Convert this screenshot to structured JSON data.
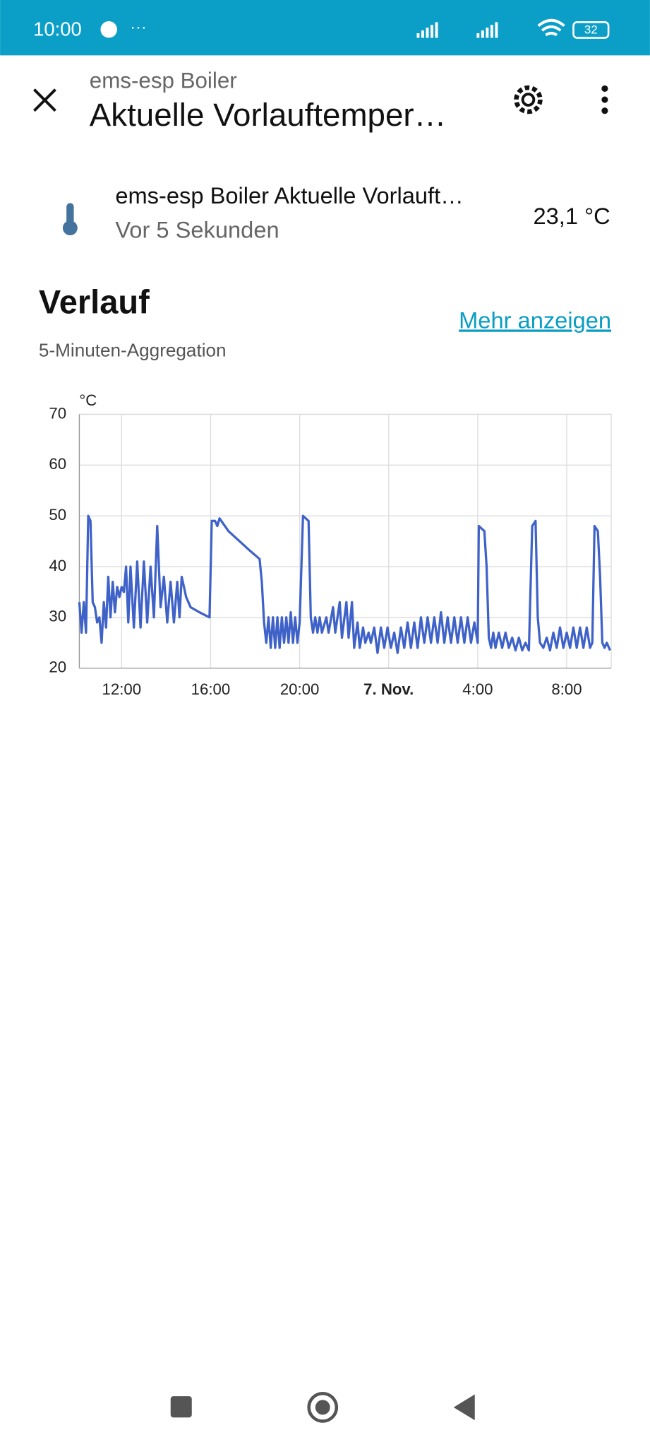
{
  "status_bar": {
    "time": "10:00",
    "battery": "32"
  },
  "header": {
    "subtitle": "ems-esp Boiler",
    "title": "Aktuelle Vorlauftemper…"
  },
  "entity": {
    "name": "ems-esp Boiler Aktuelle Vorlauft…",
    "last_changed": "Vor 5 Sekunden",
    "state": "23,1 °C"
  },
  "history": {
    "title": "Verlauf",
    "link": "Mehr anzeigen",
    "subtitle": "5-Minuten-Aggregation"
  },
  "chart_data": {
    "type": "line",
    "y_label": "°C",
    "color": "#3f62c8",
    "grid": true,
    "xlim": [
      10.1,
      34.0
    ],
    "ylim": [
      20,
      70
    ],
    "yticks": [
      20,
      30,
      40,
      50,
      60,
      70
    ],
    "xticks": [
      {
        "value": 12,
        "label": "12:00"
      },
      {
        "value": 16,
        "label": "16:00"
      },
      {
        "value": 20,
        "label": "20:00"
      },
      {
        "value": 24,
        "label": "7. Nov."
      },
      {
        "value": 28,
        "label": "4:00"
      },
      {
        "value": 32,
        "label": "8:00"
      }
    ],
    "x": [
      10.1,
      10.2,
      10.3,
      10.4,
      10.5,
      10.6,
      10.7,
      10.8,
      10.9,
      11.0,
      11.1,
      11.2,
      11.3,
      11.4,
      11.5,
      11.6,
      11.7,
      11.8,
      11.9,
      12.0,
      12.1,
      12.2,
      12.3,
      12.4,
      12.55,
      12.7,
      12.85,
      13.0,
      13.15,
      13.3,
      13.45,
      13.6,
      13.75,
      13.9,
      14.05,
      14.2,
      14.35,
      14.5,
      14.6,
      14.7,
      14.9,
      15.1,
      15.5,
      15.95,
      16.05,
      16.2,
      16.3,
      16.4,
      16.8,
      17.3,
      17.8,
      18.2,
      18.3,
      18.4,
      18.5,
      18.6,
      18.7,
      18.8,
      18.9,
      19.0,
      19.1,
      19.2,
      19.3,
      19.4,
      19.5,
      19.6,
      19.7,
      19.8,
      19.9,
      20.0,
      20.15,
      20.4,
      20.5,
      20.6,
      20.7,
      20.8,
      20.9,
      21.0,
      21.2,
      21.3,
      21.5,
      21.6,
      21.8,
      21.9,
      22.1,
      22.2,
      22.35,
      22.45,
      22.6,
      22.7,
      22.85,
      22.95,
      23.1,
      23.2,
      23.35,
      23.5,
      23.65,
      23.8,
      23.95,
      24.1,
      24.25,
      24.4,
      24.55,
      24.7,
      24.85,
      25.0,
      25.15,
      25.3,
      25.45,
      25.6,
      25.75,
      25.9,
      26.05,
      26.2,
      26.35,
      26.5,
      26.65,
      26.8,
      26.95,
      27.1,
      27.25,
      27.4,
      27.55,
      27.7,
      27.85,
      28.0,
      28.05,
      28.3,
      28.4,
      28.5,
      28.6,
      28.7,
      28.8,
      28.95,
      29.1,
      29.25,
      29.4,
      29.55,
      29.7,
      29.85,
      30.0,
      30.15,
      30.3,
      30.45,
      30.6,
      30.7,
      30.8,
      30.95,
      31.1,
      31.25,
      31.4,
      31.55,
      31.7,
      31.85,
      32.0,
      32.15,
      32.3,
      32.45,
      32.6,
      32.75,
      32.9,
      33.05,
      33.15,
      33.25,
      33.4,
      33.5,
      33.6,
      33.7,
      33.8,
      33.95
    ],
    "values": [
      33,
      27,
      33,
      27,
      50,
      49,
      33,
      32,
      29,
      30,
      25,
      33,
      28,
      38,
      30,
      37,
      31,
      36,
      34,
      36,
      35,
      40,
      29,
      40,
      28,
      41,
      28,
      41,
      29,
      40,
      30,
      48,
      32,
      38,
      29,
      37,
      29,
      37,
      30,
      38,
      34,
      32,
      31,
      30,
      49,
      49,
      48,
      49.5,
      47,
      45,
      43,
      41.5,
      37,
      29,
      25,
      30,
      24,
      30,
      24,
      30,
      24,
      30,
      25,
      30,
      25,
      31,
      25,
      30,
      25,
      29,
      50,
      49,
      30,
      27,
      30,
      27,
      30,
      27,
      30,
      27,
      32,
      27,
      33,
      26,
      33,
      26,
      33,
      24,
      29,
      24,
      28,
      25,
      27,
      25,
      28,
      23,
      28,
      24,
      28,
      24,
      27,
      23,
      28,
      24,
      29,
      24,
      29,
      24,
      30,
      25,
      30,
      25,
      30,
      25,
      31,
      25,
      30,
      25,
      30,
      25,
      30,
      25,
      30,
      25,
      29,
      25,
      48,
      47,
      40,
      26,
      24,
      27,
      24,
      27,
      24,
      27,
      24,
      26,
      23.5,
      26,
      23.5,
      25,
      23.5,
      48,
      49,
      30,
      25,
      24,
      26,
      23.5,
      27,
      24,
      28,
      24,
      27,
      24,
      28,
      24,
      28,
      24,
      28,
      24,
      25,
      48,
      47,
      38,
      25,
      24,
      25,
      23.5
    ]
  }
}
